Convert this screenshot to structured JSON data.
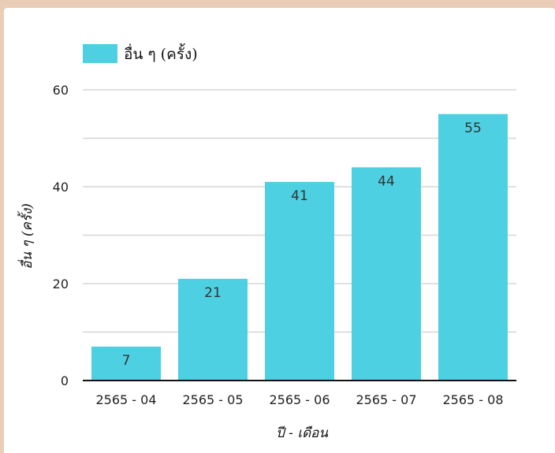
{
  "chart_data": {
    "type": "bar",
    "categories": [
      "2565 - 04",
      "2565 - 05",
      "2565 - 06",
      "2565 - 07",
      "2565 - 08"
    ],
    "series": [
      {
        "name": "อื่น ๆ (ครั้ง)",
        "values": [
          7,
          21,
          41,
          44,
          55
        ]
      }
    ],
    "data_labels": [
      "7",
      "21",
      "41",
      "44",
      "55"
    ],
    "xlabel": "ปี - เดือน",
    "ylabel": "อื่น ๆ (ครั้ง)",
    "ylim": [
      0,
      60
    ],
    "yticks": [
      0,
      20,
      40,
      60
    ],
    "grid": true,
    "legend_position": "top-left",
    "bar_color": "#4dd0e1"
  }
}
